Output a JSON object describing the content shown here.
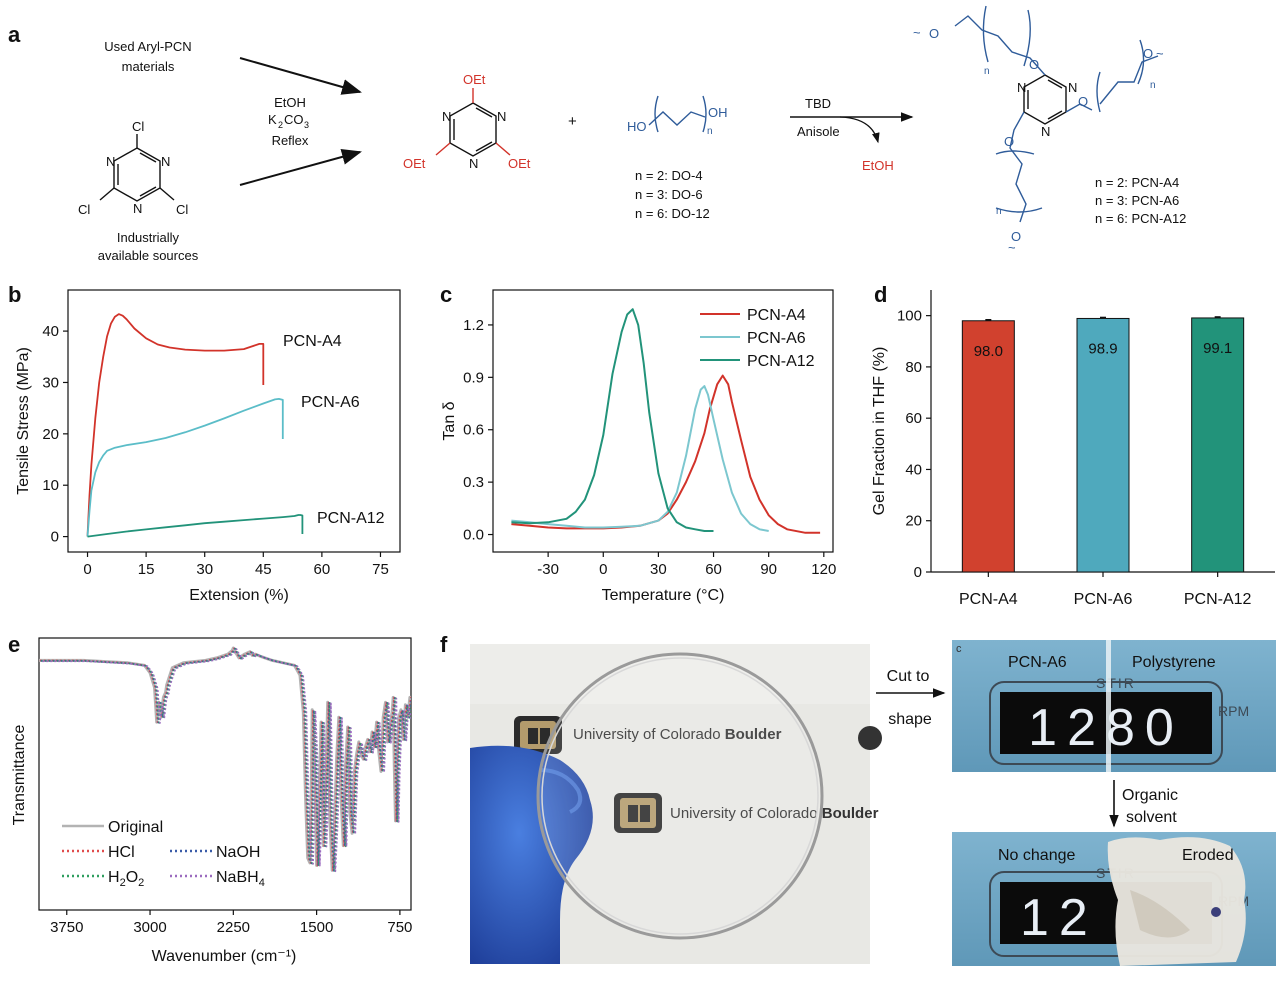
{
  "panel_labels": [
    "a",
    "b",
    "c",
    "d",
    "e",
    "f"
  ],
  "scheme": {
    "source1": [
      "Used Aryl-PCN",
      "materials"
    ],
    "source2": [
      "Industrially",
      "available sources"
    ],
    "conditions": [
      "EtOH",
      "K",
      "2",
      "CO",
      "3",
      "Reflex"
    ],
    "ring_atoms": {
      "N": "N",
      "Cl": "Cl",
      "OEt": "OEt"
    },
    "plus": "+",
    "diol_ho": "HO",
    "diol_oh": "OH",
    "diol_n": "n",
    "diol_list": [
      "n = 2: DO-4",
      "n = 3: DO-6",
      "n = 6: DO-12"
    ],
    "reagent": "TBD",
    "solvent": "Anisole",
    "byproduct": "EtOH",
    "polymer_list": [
      "n = 2: PCN-A4",
      "n = 3: PCN-A6",
      "n = 6: PCN-A12"
    ],
    "polymer_o": "O",
    "polymer_n": "n",
    "colors": {
      "red": "#d2332a",
      "blue": "#2f5c9a"
    }
  },
  "chart_data": [
    {
      "panel": "b",
      "type": "line",
      "xlabel": "Extension (%)",
      "ylabel": "Tensile Stress (MPa)",
      "xlim": [
        -5,
        80
      ],
      "ylim": [
        -3,
        48
      ],
      "xticks": [
        0,
        15,
        30,
        45,
        60,
        75
      ],
      "yticks": [
        0,
        10,
        20,
        30,
        40
      ],
      "series": [
        {
          "name": "PCN-A4",
          "color": "#d2332a",
          "x": [
            0,
            0.5,
            1,
            2,
            3,
            4,
            5,
            6,
            7,
            8,
            9,
            10,
            12,
            15,
            18,
            21,
            25,
            30,
            35,
            40,
            42,
            44,
            44.5,
            45,
            45,
            45
          ],
          "y": [
            0,
            8,
            14,
            23,
            30,
            35,
            39,
            41.5,
            42.8,
            43.3,
            43,
            42.3,
            40.5,
            38.6,
            37.4,
            36.8,
            36.4,
            36.2,
            36.2,
            36.5,
            37,
            37.5,
            37.5,
            37.5,
            33,
            29.5
          ]
        },
        {
          "name": "PCN-A6",
          "color": "#5bbdc8",
          "x": [
            0,
            0.5,
            1,
            2,
            3,
            4,
            5,
            7,
            10,
            15,
            20,
            25,
            30,
            35,
            40,
            45,
            48,
            49,
            50,
            50,
            50
          ],
          "y": [
            0,
            5,
            9,
            12.5,
            14.5,
            15.8,
            16.7,
            17.3,
            17.8,
            18.4,
            19.2,
            20.3,
            21.6,
            23,
            24.5,
            25.9,
            26.7,
            26.8,
            26.6,
            23,
            19
          ]
        },
        {
          "name": "PCN-A12",
          "color": "#22937a",
          "x": [
            0,
            5,
            10,
            15,
            20,
            25,
            30,
            35,
            40,
            45,
            50,
            53,
            54,
            54.5,
            55,
            55
          ],
          "y": [
            0,
            0.5,
            1,
            1.4,
            1.8,
            2.2,
            2.6,
            2.9,
            3.2,
            3.5,
            3.8,
            4,
            4.2,
            4.2,
            4.1,
            0.5
          ]
        }
      ],
      "annotations": [
        "PCN-A4",
        "PCN-A6",
        "PCN-A12"
      ]
    },
    {
      "panel": "c",
      "type": "line",
      "xlabel": "Temperature (°C)",
      "ylabel": "Tan δ",
      "xlim": [
        -60,
        125
      ],
      "ylim": [
        -0.1,
        1.4
      ],
      "xticks": [
        -30,
        0,
        30,
        60,
        90,
        120
      ],
      "yticks": [
        0.0,
        0.3,
        0.6,
        0.9,
        1.2
      ],
      "series": [
        {
          "name": "PCN-A4",
          "color": "#d2332a",
          "x": [
            -50,
            -40,
            -30,
            -20,
            -10,
            0,
            10,
            20,
            30,
            35,
            40,
            45,
            50,
            55,
            58,
            62,
            65,
            68,
            70,
            75,
            80,
            85,
            90,
            95,
            100,
            110,
            118
          ],
          "y": [
            0.06,
            0.05,
            0.04,
            0.035,
            0.035,
            0.035,
            0.04,
            0.05,
            0.08,
            0.12,
            0.2,
            0.3,
            0.42,
            0.58,
            0.72,
            0.86,
            0.91,
            0.86,
            0.76,
            0.54,
            0.33,
            0.2,
            0.11,
            0.06,
            0.03,
            0.01,
            0.01
          ]
        },
        {
          "name": "PCN-A6",
          "color": "#7cc7cf",
          "x": [
            -50,
            -40,
            -30,
            -20,
            -10,
            0,
            10,
            20,
            30,
            35,
            40,
            45,
            50,
            53,
            55,
            57,
            60,
            65,
            70,
            75,
            80,
            85,
            90
          ],
          "y": [
            0.08,
            0.07,
            0.06,
            0.05,
            0.04,
            0.04,
            0.045,
            0.05,
            0.08,
            0.13,
            0.24,
            0.45,
            0.72,
            0.83,
            0.85,
            0.8,
            0.66,
            0.43,
            0.24,
            0.12,
            0.06,
            0.03,
            0.02
          ]
        },
        {
          "name": "PCN-A12",
          "color": "#22937a",
          "x": [
            -50,
            -40,
            -30,
            -20,
            -15,
            -10,
            -5,
            0,
            5,
            10,
            13,
            16,
            19,
            22,
            25,
            30,
            35,
            40,
            45,
            50,
            55,
            60
          ],
          "y": [
            0.07,
            0.065,
            0.07,
            0.09,
            0.13,
            0.2,
            0.34,
            0.57,
            0.92,
            1.16,
            1.26,
            1.29,
            1.2,
            0.98,
            0.7,
            0.35,
            0.15,
            0.07,
            0.04,
            0.03,
            0.02,
            0.02
          ]
        }
      ],
      "legend_position": "top-right"
    },
    {
      "panel": "d",
      "type": "bar",
      "ylabel": "Gel Fraction in THF (%)",
      "ylim": [
        0,
        110
      ],
      "yticks": [
        0,
        20,
        40,
        60,
        80,
        100
      ],
      "categories": [
        "PCN-A4",
        "PCN-A6",
        "PCN-A12"
      ],
      "values": [
        98.0,
        98.9,
        99.1
      ],
      "labels": [
        "98.0",
        "98.9",
        "99.1"
      ],
      "colors": [
        "#d1412e",
        "#4fa9bd",
        "#22937a"
      ]
    },
    {
      "panel": "e",
      "type": "line",
      "xlabel": "Wavenumber (cm⁻¹)",
      "ylabel": "Transmittance",
      "xlim": [
        4000,
        650
      ],
      "xticks": [
        3750,
        3000,
        2250,
        1500,
        750
      ],
      "ylim": [
        0,
        1
      ],
      "spectrum_x": [
        4000,
        3800,
        3600,
        3400,
        3200,
        3050,
        3000,
        2960,
        2940,
        2920,
        2900,
        2880,
        2860,
        2850,
        2800,
        2700,
        2500,
        2400,
        2300,
        2260,
        2250,
        2240,
        2200,
        2150,
        2100,
        2080,
        2050,
        2000,
        1900,
        1800,
        1700,
        1650,
        1620,
        1600,
        1580,
        1560,
        1550,
        1540,
        1520,
        1500,
        1480,
        1460,
        1440,
        1420,
        1400,
        1380,
        1360,
        1340,
        1320,
        1300,
        1280,
        1260,
        1240,
        1220,
        1200,
        1180,
        1160,
        1140,
        1120,
        1100,
        1080,
        1060,
        1040,
        1020,
        1000,
        980,
        960,
        940,
        920,
        900,
        880,
        860,
        840,
        820,
        810,
        800,
        790,
        780,
        760,
        740,
        720,
        700,
        680,
        660,
        650
      ],
      "spectrum_y": [
        0.95,
        0.95,
        0.95,
        0.945,
        0.94,
        0.93,
        0.9,
        0.84,
        0.7,
        0.78,
        0.72,
        0.8,
        0.82,
        0.85,
        0.92,
        0.94,
        0.95,
        0.96,
        0.975,
        0.99,
        1.0,
        0.99,
        0.96,
        0.975,
        0.985,
        0.97,
        0.975,
        0.965,
        0.95,
        0.94,
        0.93,
        0.89,
        0.74,
        0.4,
        0.15,
        0.13,
        0.38,
        0.75,
        0.55,
        0.12,
        0.35,
        0.7,
        0.2,
        0.42,
        0.78,
        0.3,
        0.1,
        0.28,
        0.55,
        0.72,
        0.4,
        0.2,
        0.52,
        0.68,
        0.33,
        0.25,
        0.5,
        0.57,
        0.62,
        0.57,
        0.55,
        0.6,
        0.63,
        0.58,
        0.66,
        0.6,
        0.7,
        0.58,
        0.5,
        0.72,
        0.78,
        0.62,
        0.68,
        0.74,
        0.8,
        0.52,
        0.3,
        0.5,
        0.72,
        0.75,
        0.63,
        0.77,
        0.72,
        0.8,
        0.8
      ],
      "series": [
        {
          "name": "Original",
          "color": "#b3b3b3",
          "style": "solid"
        },
        {
          "name": "HCl",
          "color": "#e04b4b",
          "style": "dotted"
        },
        {
          "name": "NaOH",
          "color": "#3a5ca8",
          "style": "dotted"
        },
        {
          "name": "H",
          "color": "#2e9e5e",
          "style": "dotted",
          "sub": "2",
          "tail": "O",
          "sub2": "2"
        },
        {
          "name": "NaBH",
          "color": "#9b6bbf",
          "style": "dotted",
          "sub": "4"
        }
      ]
    }
  ],
  "photos": {
    "disc_caption": [
      "University of Colorado ",
      "Boulder"
    ],
    "arrow_top": [
      "Cut to",
      "shape"
    ],
    "arrow_down": [
      "Organic",
      "solvent"
    ],
    "top_labels": {
      "left": "PCN-A6",
      "right": "Polystyrene"
    },
    "bottom_labels": {
      "left": "No change",
      "right": "Eroded"
    },
    "display_top": "1280",
    "display_bottom": "12",
    "rpm": "RPM",
    "stir": "STIR",
    "corner_c": "c"
  }
}
